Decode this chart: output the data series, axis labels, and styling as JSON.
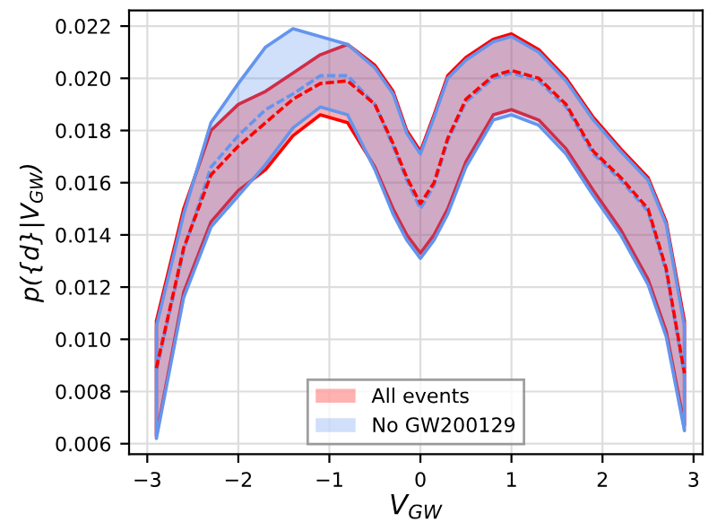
{
  "chart_data": {
    "type": "line",
    "xlabel": "V$_{GW}$",
    "ylabel": "p({d}|V$_{GW}$)",
    "x": [
      -2.9,
      -2.6,
      -2.3,
      -2.0,
      -1.7,
      -1.4,
      -1.1,
      -0.8,
      -0.5,
      -0.3,
      -0.15,
      0,
      0.15,
      0.3,
      0.5,
      0.8,
      1.0,
      1.3,
      1.6,
      1.9,
      2.2,
      2.5,
      2.7,
      2.9
    ],
    "series": [
      {
        "name": "All events",
        "color": "#ff0000",
        "values": [
          0.0089,
          0.0135,
          0.0163,
          0.0174,
          0.0183,
          0.0192,
          0.0198,
          0.0199,
          0.019,
          0.0175,
          0.0162,
          0.0152,
          0.016,
          0.0177,
          0.0192,
          0.0201,
          0.0203,
          0.02,
          0.019,
          0.0172,
          0.0162,
          0.015,
          0.0127,
          0.0087
        ],
        "lower": [
          0.0063,
          0.0118,
          0.0145,
          0.0157,
          0.0165,
          0.0178,
          0.0186,
          0.0183,
          0.0166,
          0.015,
          0.014,
          0.0133,
          0.014,
          0.015,
          0.0168,
          0.0186,
          0.0188,
          0.0184,
          0.0173,
          0.0157,
          0.0142,
          0.0123,
          0.0103,
          0.0067
        ],
        "upper": [
          0.0107,
          0.015,
          0.018,
          0.019,
          0.0195,
          0.0202,
          0.0209,
          0.0213,
          0.0205,
          0.0195,
          0.018,
          0.0172,
          0.0186,
          0.0201,
          0.0208,
          0.0215,
          0.0217,
          0.0211,
          0.02,
          0.0185,
          0.0173,
          0.0162,
          0.0145,
          0.0107
        ]
      },
      {
        "name": "No GW200129",
        "color": "#6495ed",
        "values": [
          0.0088,
          0.0134,
          0.0166,
          0.0178,
          0.0188,
          0.0194,
          0.0201,
          0.0201,
          0.019,
          0.0174,
          0.0161,
          0.015,
          0.0159,
          0.0176,
          0.0191,
          0.02,
          0.0202,
          0.0199,
          0.0189,
          0.0171,
          0.0161,
          0.0149,
          0.0126,
          0.0086
        ],
        "lower": [
          0.0062,
          0.0116,
          0.0143,
          0.0155,
          0.0167,
          0.0181,
          0.0189,
          0.0186,
          0.0165,
          0.0148,
          0.0138,
          0.0131,
          0.0138,
          0.0148,
          0.0166,
          0.0184,
          0.0186,
          0.0182,
          0.0171,
          0.0155,
          0.014,
          0.0121,
          0.0101,
          0.0065
        ],
        "upper": [
          0.0105,
          0.0148,
          0.0183,
          0.0198,
          0.0212,
          0.0219,
          0.0216,
          0.0213,
          0.0204,
          0.0194,
          0.0179,
          0.0171,
          0.0185,
          0.02,
          0.0207,
          0.0214,
          0.0216,
          0.021,
          0.0199,
          0.0184,
          0.0172,
          0.0161,
          0.0144,
          0.0105
        ]
      }
    ],
    "xlim": [
      -3.2,
      3.1
    ],
    "ylim": [
      0.0056,
      0.0226
    ],
    "xticks": [
      {
        "value": -3,
        "label": "−3"
      },
      {
        "value": -2,
        "label": "−2"
      },
      {
        "value": -1,
        "label": "−1"
      },
      0,
      1,
      2,
      3
    ],
    "yticks": [
      0.006,
      0.008,
      {
        "value": 0.01,
        "label": "0.010"
      },
      0.012,
      0.014,
      0.016,
      0.018,
      {
        "value": 0.02,
        "label": "0.020"
      },
      0.022
    ],
    "grid": true,
    "legend": "bottom",
    "line_style": "dashed",
    "marker": "none"
  }
}
